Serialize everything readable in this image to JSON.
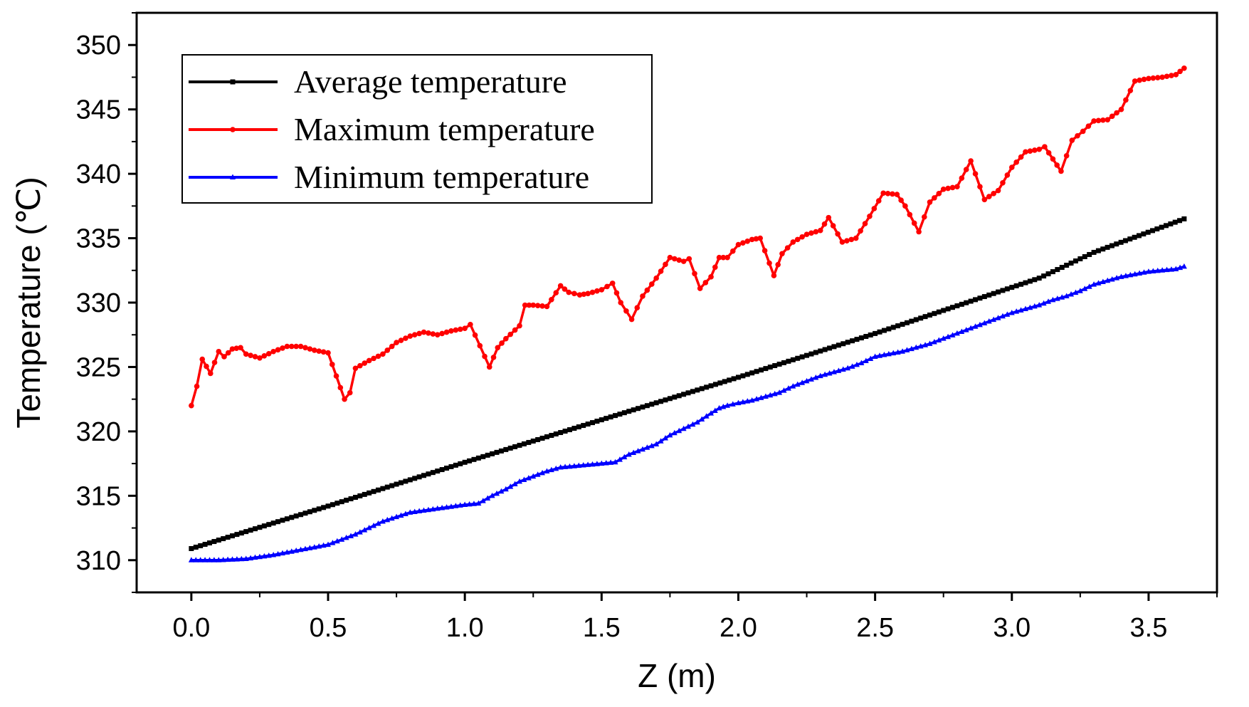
{
  "chart_data": {
    "type": "line",
    "title": "",
    "xlabel": "Z (m)",
    "ylabel": "Temperature (℃)",
    "xlim": [
      -0.2,
      3.75
    ],
    "ylim": [
      307.5,
      352.5
    ],
    "xticks": [
      "0.0",
      "0.5",
      "1.0",
      "1.5",
      "2.0",
      "2.5",
      "3.0",
      "3.5"
    ],
    "xtick_values": [
      0.0,
      0.5,
      1.0,
      1.5,
      2.0,
      2.5,
      3.0,
      3.5
    ],
    "yticks": [
      "310",
      "315",
      "320",
      "325",
      "330",
      "335",
      "340",
      "345",
      "350"
    ],
    "ytick_values": [
      310,
      315,
      320,
      325,
      330,
      335,
      340,
      345,
      350
    ],
    "legend_position": "top-left",
    "series": [
      {
        "name": "Average temperature",
        "color": "#000000",
        "marker": "square",
        "x": [
          0.0,
          0.5,
          1.0,
          1.5,
          2.0,
          2.5,
          3.1,
          3.3,
          3.63
        ],
        "y": [
          310.9,
          314.2,
          317.6,
          320.9,
          324.2,
          327.6,
          331.9,
          333.9,
          336.5
        ]
      },
      {
        "name": "Maximum temperature",
        "color": "#ff0000",
        "marker": "circle",
        "x": [
          0.0,
          0.02,
          0.04,
          0.07,
          0.1,
          0.12,
          0.15,
          0.18,
          0.2,
          0.25,
          0.3,
          0.35,
          0.4,
          0.45,
          0.5,
          0.56,
          0.58,
          0.6,
          0.65,
          0.7,
          0.75,
          0.8,
          0.85,
          0.9,
          0.95,
          1.0,
          1.02,
          1.09,
          1.12,
          1.15,
          1.2,
          1.22,
          1.25,
          1.3,
          1.35,
          1.38,
          1.42,
          1.45,
          1.5,
          1.54,
          1.57,
          1.61,
          1.65,
          1.7,
          1.75,
          1.8,
          1.82,
          1.86,
          1.9,
          1.93,
          1.96,
          2.0,
          2.05,
          2.08,
          2.13,
          2.16,
          2.2,
          2.25,
          2.3,
          2.33,
          2.38,
          2.43,
          2.48,
          2.53,
          2.58,
          2.61,
          2.66,
          2.7,
          2.75,
          2.8,
          2.85,
          2.9,
          2.95,
          3.0,
          3.05,
          3.1,
          3.12,
          3.18,
          3.22,
          3.26,
          3.3,
          3.35,
          3.4,
          3.45,
          3.5,
          3.55,
          3.6,
          3.63
        ],
        "y": [
          322.0,
          323.5,
          325.6,
          324.5,
          326.2,
          325.8,
          326.4,
          326.5,
          326.0,
          325.7,
          326.2,
          326.6,
          326.6,
          326.3,
          326.1,
          322.5,
          323.0,
          324.9,
          325.5,
          326.0,
          326.9,
          327.4,
          327.7,
          327.5,
          327.8,
          328.0,
          328.3,
          325.0,
          326.5,
          327.2,
          328.2,
          329.8,
          329.8,
          329.7,
          331.3,
          330.8,
          330.6,
          330.7,
          331.0,
          331.5,
          330.0,
          328.7,
          330.5,
          331.9,
          333.5,
          333.2,
          333.4,
          331.1,
          332.0,
          333.5,
          333.5,
          334.5,
          334.9,
          335.0,
          332.1,
          333.8,
          334.7,
          335.3,
          335.6,
          336.6,
          334.7,
          335.0,
          336.7,
          338.5,
          338.4,
          337.5,
          335.5,
          337.8,
          338.8,
          339.0,
          341.0,
          338.0,
          338.7,
          340.5,
          341.7,
          341.9,
          342.1,
          340.2,
          342.6,
          343.3,
          344.1,
          344.2,
          345.0,
          347.2,
          347.4,
          347.5,
          347.7,
          348.2
        ]
      },
      {
        "name": "Minimum temperature",
        "color": "#0000ff",
        "marker": "triangle",
        "x": [
          0.0,
          0.1,
          0.2,
          0.3,
          0.4,
          0.5,
          0.6,
          0.7,
          0.8,
          0.9,
          1.0,
          1.05,
          1.1,
          1.15,
          1.2,
          1.25,
          1.3,
          1.35,
          1.4,
          1.45,
          1.5,
          1.55,
          1.6,
          1.65,
          1.7,
          1.75,
          1.8,
          1.85,
          1.9,
          1.93,
          1.96,
          2.0,
          2.05,
          2.1,
          2.15,
          2.2,
          2.25,
          2.3,
          2.35,
          2.4,
          2.45,
          2.5,
          2.55,
          2.6,
          2.65,
          2.7,
          2.75,
          2.8,
          2.85,
          2.9,
          2.95,
          3.0,
          3.05,
          3.1,
          3.15,
          3.2,
          3.25,
          3.3,
          3.35,
          3.4,
          3.45,
          3.5,
          3.55,
          3.6,
          3.63
        ],
        "y": [
          310.0,
          310.0,
          310.1,
          310.4,
          310.8,
          311.2,
          312.0,
          313.0,
          313.7,
          314.0,
          314.3,
          314.4,
          315.0,
          315.5,
          316.1,
          316.5,
          316.9,
          317.2,
          317.3,
          317.4,
          317.5,
          317.6,
          318.2,
          318.6,
          319.0,
          319.7,
          320.2,
          320.7,
          321.4,
          321.8,
          322.0,
          322.2,
          322.4,
          322.7,
          323.0,
          323.5,
          323.9,
          324.3,
          324.6,
          324.9,
          325.3,
          325.8,
          326.0,
          326.2,
          326.5,
          326.8,
          327.2,
          327.6,
          328.0,
          328.4,
          328.8,
          329.2,
          329.5,
          329.8,
          330.2,
          330.5,
          330.9,
          331.4,
          331.7,
          332.0,
          332.2,
          332.4,
          332.5,
          332.6,
          332.8
        ]
      }
    ]
  }
}
